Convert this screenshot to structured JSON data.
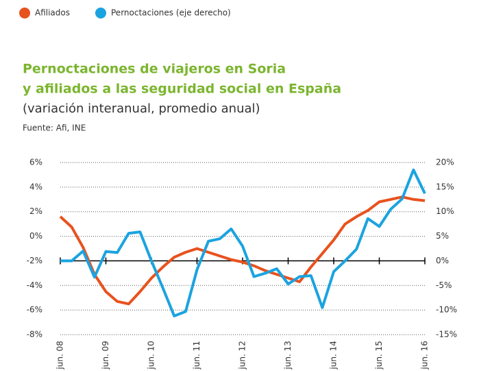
{
  "chart_data": {
    "type": "line",
    "title": [
      "Pernoctaciones de viajeros en Soria",
      "y afiliados a las seguridad social en España"
    ],
    "subtitle": "(variación interanual, promedio anual)",
    "source": "Fuente: Afi, INE",
    "categories": [
      "jun. 08",
      null,
      null,
      null,
      "jun. 09",
      null,
      null,
      null,
      "jun. 10",
      null,
      null,
      null,
      "jun. 11",
      null,
      null,
      null,
      "jun. 12",
      null,
      null,
      null,
      "jun. 13",
      null,
      null,
      null,
      "jun. 14",
      null,
      null,
      null,
      "jun. 15",
      null,
      null,
      null,
      "jun. 16"
    ],
    "series": [
      {
        "name": "Afiliados",
        "color": "#e8521e",
        "axis": "y",
        "values": [
          1.6,
          0.75,
          -0.9,
          -3.1,
          -4.5,
          -5.3,
          -5.5,
          -4.5,
          -3.4,
          -2.5,
          -1.7,
          -1.3,
          -1.0,
          -1.3,
          -1.6,
          -1.9,
          -2.1,
          -2.4,
          -2.8,
          -3.1,
          -3.4,
          -3.7,
          -2.5,
          -1.4,
          -0.3,
          1.0,
          1.6,
          2.1,
          2.8,
          3.0,
          3.2,
          3.0,
          2.9
        ]
      },
      {
        "name": "Pernoctaciones (eje derecho)",
        "color": "#1ba3e0",
        "axis": "y2",
        "values": [
          0,
          0,
          2,
          -3.3,
          1.9,
          1.7,
          5.6,
          5.9,
          0,
          -5.5,
          -11.2,
          -10.3,
          -1.8,
          4,
          4.5,
          6.5,
          3,
          -3.2,
          -2.5,
          -1.6,
          -4.7,
          -3.2,
          -3,
          -9.5,
          -2.2,
          0,
          2.4,
          8.6,
          7,
          10.5,
          12.6,
          18.5,
          13.7
        ]
      }
    ],
    "ylim": [
      -8,
      6
    ],
    "yticks": [
      {
        "value": 6,
        "label": "6%"
      },
      {
        "value": 4,
        "label": "4%"
      },
      {
        "value": 2,
        "label": "2%"
      },
      {
        "value": 0,
        "label": "0%"
      },
      {
        "value": -2,
        "label": "-2%"
      },
      {
        "value": -4,
        "label": "-4%"
      },
      {
        "value": -6,
        "label": "-6%"
      },
      {
        "value": -8,
        "label": "-8%"
      }
    ],
    "y2lim": [
      -15,
      20
    ],
    "y2ticks": [
      {
        "value": 20,
        "label": "20%"
      },
      {
        "value": 15,
        "label": "15%"
      },
      {
        "value": 10,
        "label": "10%"
      },
      {
        "value": 5,
        "label": "5%"
      },
      {
        "value": 0,
        "label": "0%"
      },
      {
        "value": -5,
        "label": "-5%"
      },
      {
        "value": -10,
        "label": "-10%"
      },
      {
        "value": -15,
        "label": "-15%"
      }
    ],
    "grid": true
  }
}
